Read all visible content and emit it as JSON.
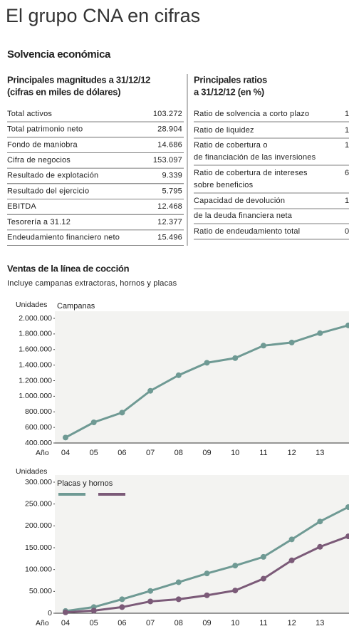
{
  "header": {
    "title": "El grupo CNA en cifras",
    "section": "Solvencia económica"
  },
  "left_table": {
    "title_lines": [
      "Principales magnitudes a 31/12/12",
      "(cifras en miles de dólares)"
    ],
    "rows": [
      [
        "Total activos",
        "103.272"
      ],
      [
        "Total patrimonio neto",
        "28.904"
      ],
      [
        "Fondo de maniobra",
        "14.686"
      ],
      [
        "Cifra de negocios",
        "153.097"
      ],
      [
        "Resultado de explotación",
        "9.339"
      ],
      [
        "Resultado del ejercicio",
        "5.795"
      ],
      [
        "EBITDA",
        "12.468"
      ],
      [
        "Tesorería a 31.12",
        "12.377"
      ],
      [
        "Endeudamiento financiero neto",
        "15.496"
      ]
    ]
  },
  "right_table": {
    "title_lines": [
      "Principales ratios",
      "a 31/12/12 (en %)"
    ],
    "rows": [
      {
        "lines": [
          "Ratio de solvencia a corto plazo"
        ],
        "value": "1"
      },
      {
        "lines": [
          "Ratio de liquidez"
        ],
        "value": "1"
      },
      {
        "lines": [
          "Ratio de cobertura o",
          "de financiación de las inversiones"
        ],
        "value": "1"
      },
      {
        "lines": [
          "Ratio de cobertura de intereses",
          "sobre beneficios"
        ],
        "value": "6"
      },
      {
        "lines": [
          "Capacidad de devolución"
        ],
        "value": "1"
      },
      {
        "lines": [
          "de la deuda financiera neta"
        ]
      },
      {
        "lines": [
          "Ratio de endeudamiento total"
        ],
        "value": "0"
      }
    ]
  },
  "sales": {
    "title": "Ventas de la línea de cocción",
    "subtitle": "Incluye campanas extractoras, hornos y placas"
  },
  "chart_data": [
    {
      "type": "line",
      "y_label": "Unidades",
      "x_label": "Año",
      "legend_title": "Campanas",
      "categories": [
        "04",
        "05",
        "06",
        "07",
        "08",
        "09",
        "10",
        "11",
        "12",
        "13",
        null
      ],
      "series": [
        {
          "color": "#6f9a94",
          "values": [
            470000,
            665000,
            790000,
            1070000,
            1270000,
            1430000,
            1490000,
            1650000,
            1690000,
            1810000,
            1910000
          ]
        }
      ],
      "ylim": [
        400000,
        2000000
      ],
      "yticks": [
        {
          "value": 400000,
          "label": "400.000"
        },
        {
          "value": 600000,
          "label": "600.000"
        },
        {
          "value": 800000,
          "label": "800.000"
        },
        {
          "value": 1000000,
          "label": "1.000.000"
        },
        {
          "value": 1200000,
          "label": "1.200.000"
        },
        {
          "value": 1400000,
          "label": "1.400.000"
        },
        {
          "value": 1600000,
          "label": "1.600.000"
        },
        {
          "value": 1800000,
          "label": "1.800.000"
        },
        {
          "value": 2000000,
          "label": "2.000.000"
        }
      ]
    },
    {
      "type": "line",
      "y_label": "Unidades",
      "x_label": "Año",
      "legend_title": "Placas y hornos",
      "categories": [
        "04",
        "05",
        "06",
        "07",
        "08",
        "09",
        "10",
        "11",
        "12",
        "13",
        null
      ],
      "series": [
        {
          "color": "#6f9a94",
          "values": [
            5000,
            14000,
            32000,
            51000,
            71000,
            91000,
            109000,
            129000,
            169000,
            210000,
            243000
          ]
        },
        {
          "color": "#7b5a78",
          "values": [
            2000,
            6000,
            14000,
            27000,
            32000,
            41000,
            52000,
            79000,
            121000,
            152000,
            176000
          ]
        }
      ],
      "ylim": [
        0,
        300000
      ],
      "yticks": [
        0,
        {
          "value": 50000,
          "label": "50.000"
        },
        {
          "value": 100000,
          "label": "100.000"
        },
        {
          "value": 150000,
          "label": "150.000"
        },
        {
          "value": 200000,
          "label": "200.000"
        },
        {
          "value": 250000,
          "label": "250.000"
        },
        {
          "value": 300000,
          "label": "300.000"
        }
      ]
    }
  ]
}
